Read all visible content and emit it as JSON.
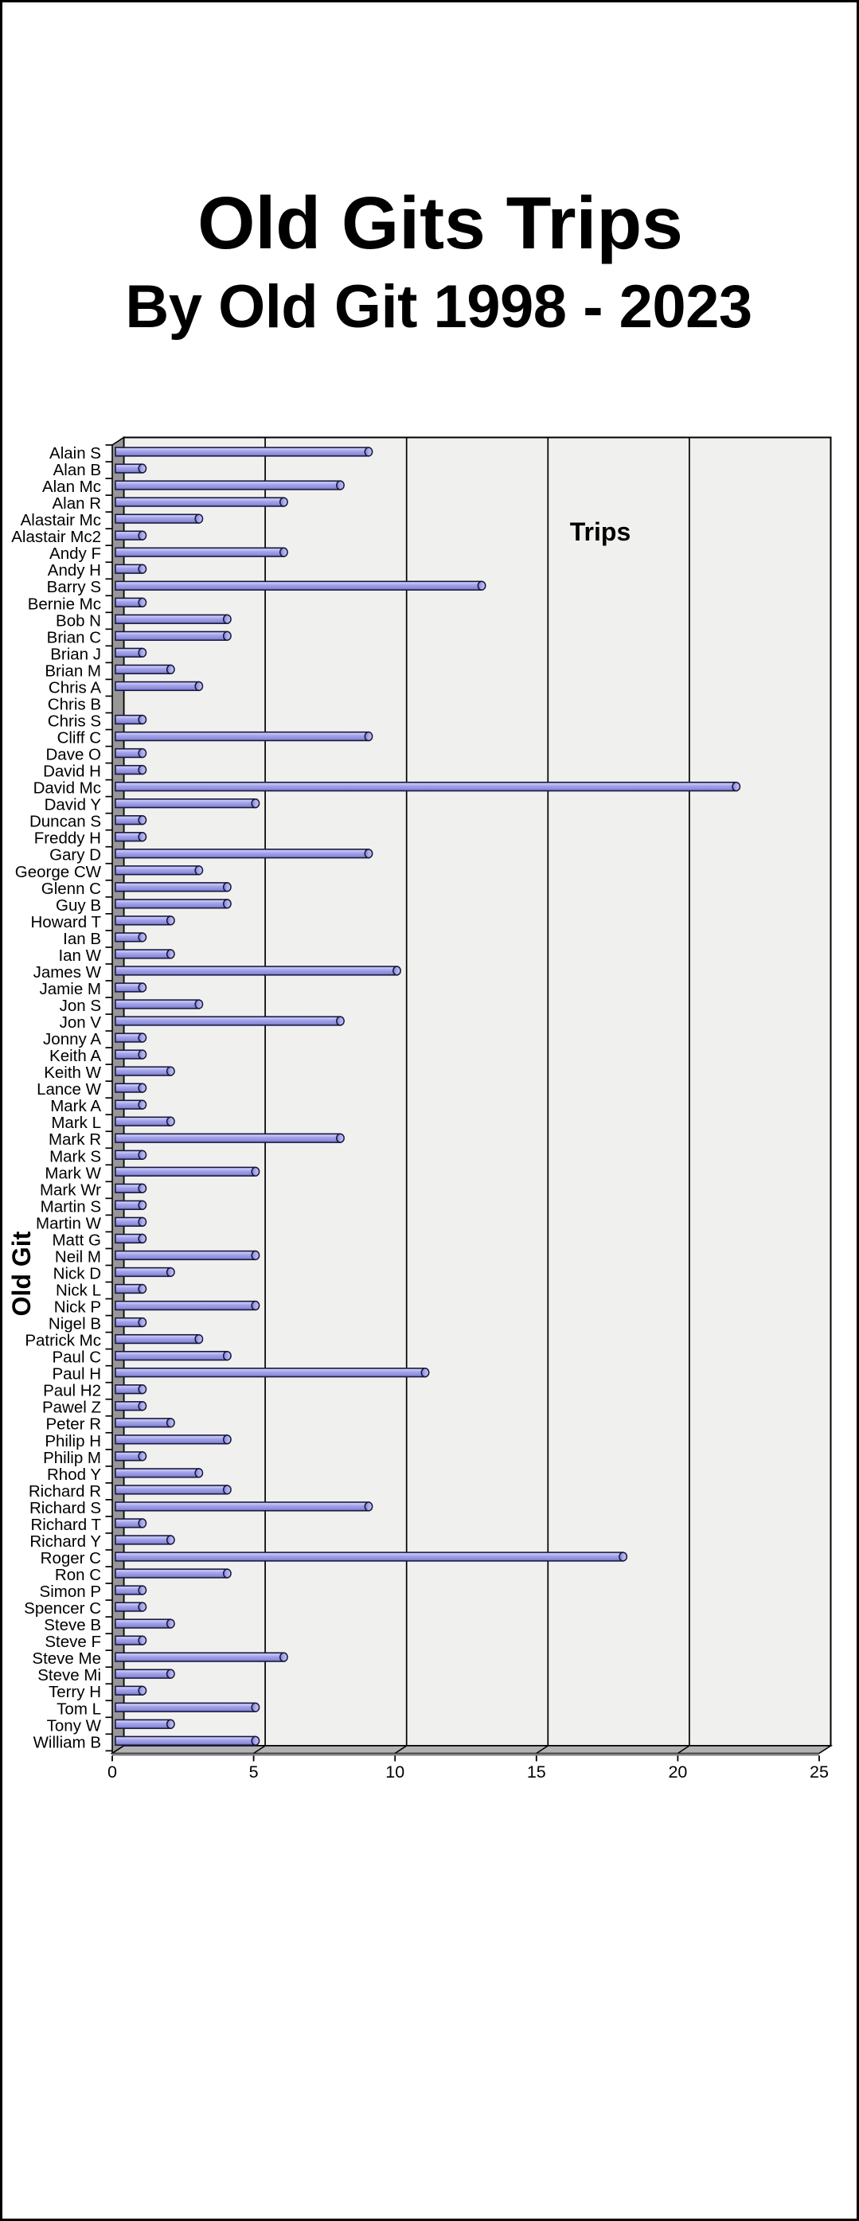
{
  "chart_data": {
    "type": "bar",
    "orientation": "horizontal",
    "style": "3d-cylinder",
    "title": "Old Gits Trips",
    "subtitle": "By Old Git 1998 - 2023",
    "series_label": "Trips",
    "xlabel": "",
    "ylabel": "Old Git",
    "xlim": [
      0,
      25
    ],
    "xticks": [
      0,
      5,
      10,
      15,
      20,
      25
    ],
    "grid": true,
    "legend_position": "inside-top-right",
    "categories": [
      "Alain S",
      "Alan B",
      "Alan Mc",
      "Alan R",
      "Alastair Mc",
      "Alastair Mc2",
      "Andy F",
      "Andy H",
      "Barry S",
      "Bernie Mc",
      "Bob N",
      "Brian C",
      "Brian J",
      "Brian M",
      "Chris A",
      "Chris B",
      "Chris S",
      "Cliff C",
      "Dave O",
      "David H",
      "David Mc",
      "David Y",
      "Duncan S",
      "Freddy H",
      "Gary D",
      "George CW",
      "Glenn C",
      "Guy B",
      "Howard T",
      "Ian B",
      "Ian W",
      "James W",
      "Jamie M",
      "Jon S",
      "Jon V",
      "Jonny A",
      "Keith A",
      "Keith W",
      "Lance W",
      "Mark A",
      "Mark L",
      "Mark R",
      "Mark S",
      "Mark W",
      "Mark Wr",
      "Martin S",
      "Martin W",
      "Matt G",
      "Neil M",
      "Nick D",
      "Nick L",
      "Nick P",
      "Nigel B",
      "Patrick Mc",
      "Paul C",
      "Paul H",
      "Paul H2",
      "Pawel Z",
      "Peter R",
      "Philip H",
      "Philip M",
      "Rhod Y",
      "Richard R",
      "Richard S",
      "Richard T",
      "Richard Y",
      "Roger C",
      "Ron C",
      "Simon P",
      "Spencer C",
      "Steve B",
      "Steve F",
      "Steve Me",
      "Steve Mi",
      "Terry H",
      "Tom L",
      "Tony W",
      "William B"
    ],
    "values": [
      9,
      1,
      8,
      6,
      3,
      1,
      6,
      1,
      13,
      1,
      4,
      4,
      1,
      2,
      3,
      0,
      1,
      9,
      1,
      1,
      22,
      5,
      1,
      1,
      9,
      3,
      4,
      4,
      2,
      1,
      2,
      10,
      1,
      3,
      8,
      1,
      1,
      2,
      1,
      1,
      2,
      8,
      1,
      5,
      1,
      1,
      1,
      1,
      5,
      2,
      1,
      5,
      1,
      3,
      4,
      11,
      1,
      1,
      2,
      4,
      1,
      3,
      4,
      9,
      1,
      2,
      18,
      4,
      1,
      1,
      2,
      1,
      6,
      2,
      1,
      5,
      2,
      5
    ],
    "colors": {
      "bar_fill": "#9c9ce8",
      "bar_highlight": "#c9c9f5",
      "bar_shadow": "#6c6cc0",
      "bar_outline": "#16163a",
      "plot_background": "#f0f0ee",
      "wall": "#979797",
      "floor": "#b3b3b3",
      "gridline": "#000000",
      "text": "#000000",
      "page_background": "#ffffff"
    }
  }
}
